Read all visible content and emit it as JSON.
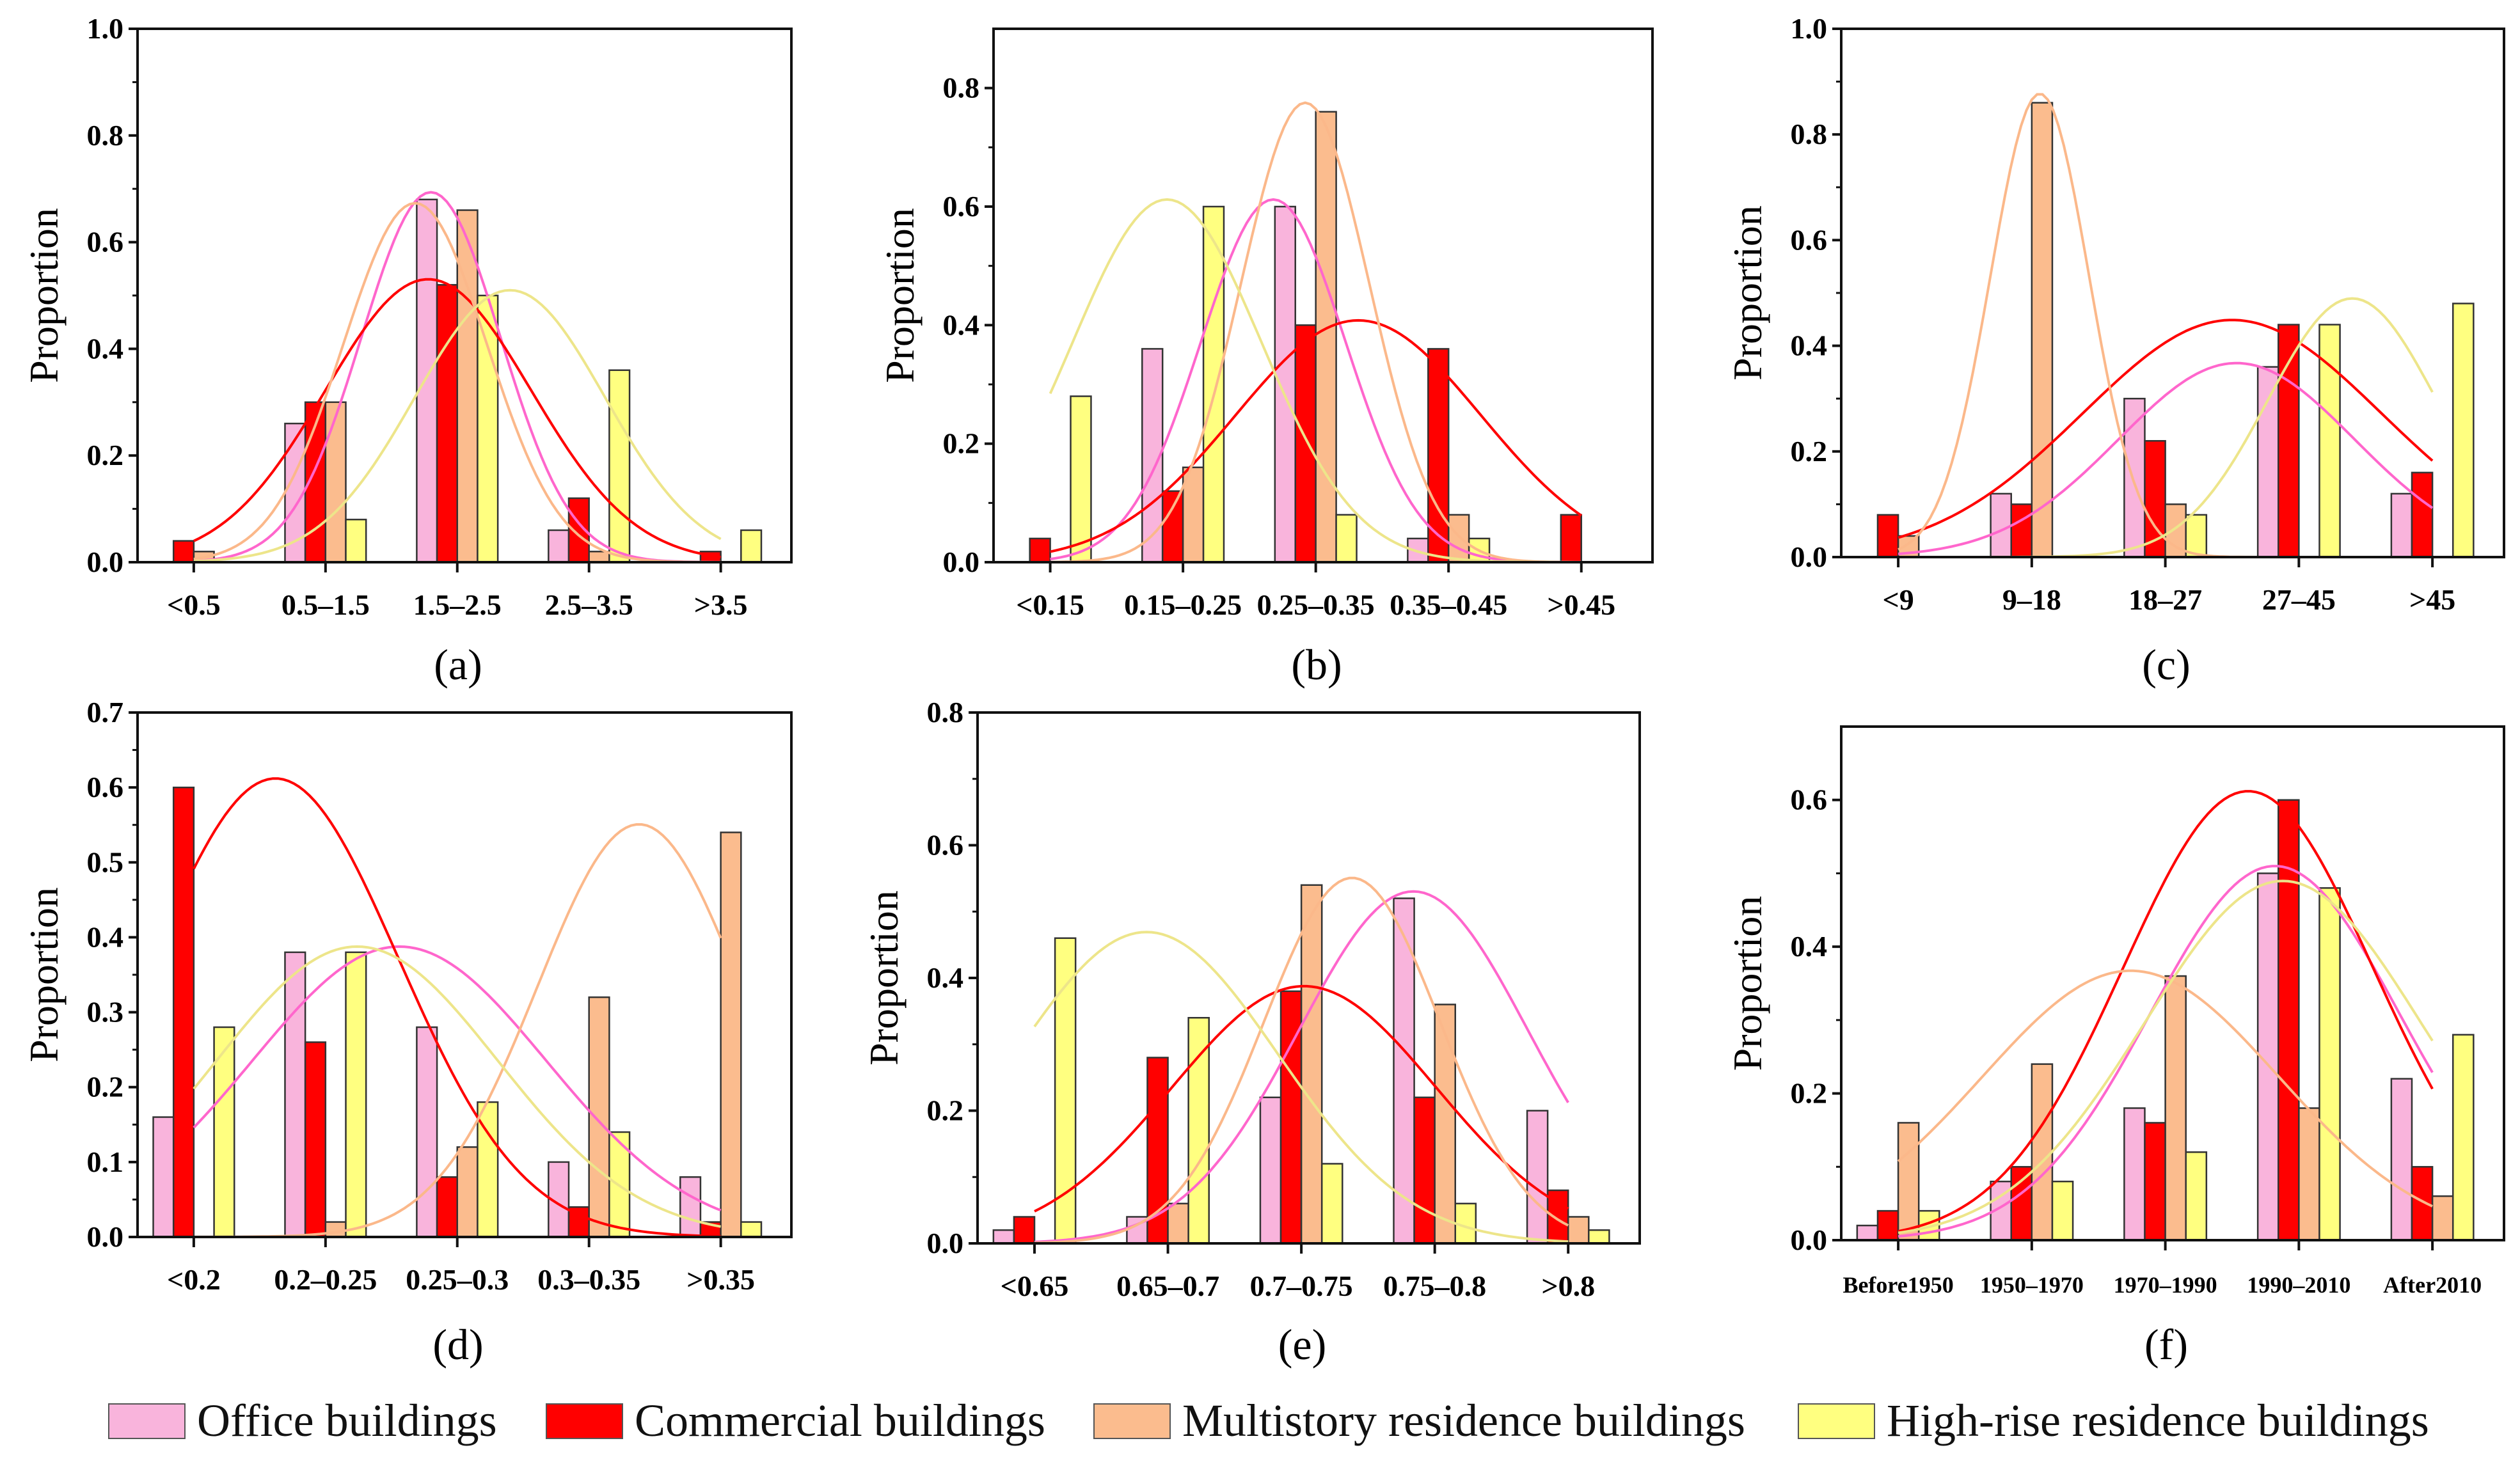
{
  "series_colors": {
    "office": "#F9B4DC",
    "commercial": "#FF0000",
    "multistory": "#FBBC8E",
    "highrise": "#FFFF80"
  },
  "curve_colors": {
    "office": "#FF66CC",
    "commercial": "#FF0000",
    "multistory": "#FBB88A",
    "highrise": "#EDE58A"
  },
  "legend": [
    {
      "key": "office",
      "label": "Office buildings"
    },
    {
      "key": "commercial",
      "label": "Commercial buildings"
    },
    {
      "key": "multistory",
      "label": "Multistory residence buildings"
    },
    {
      "key": "highrise",
      "label": "High-rise residence buildings"
    }
  ],
  "chart_data": [
    {
      "type": "bar",
      "panel": "(a)",
      "ylabel": "Proportion",
      "ylim": [
        0,
        1.0
      ],
      "yticks": [
        "0.0",
        "0.2",
        "0.4",
        "0.6",
        "0.8",
        "1.0"
      ],
      "ytick_values": [
        0,
        0.2,
        0.4,
        0.6,
        0.8,
        1.0
      ],
      "categories": [
        "<0.5",
        "0.5–1.5",
        "1.5–2.5",
        "2.5–3.5",
        ">3.5"
      ],
      "series": [
        {
          "name": "Office buildings",
          "key": "office",
          "values": [
            0,
            0.26,
            0.68,
            0.06,
            0
          ]
        },
        {
          "name": "Commercial buildings",
          "key": "commercial",
          "values": [
            0.04,
            0.3,
            0.52,
            0.12,
            0.02
          ]
        },
        {
          "name": "Multistory residence buildings",
          "key": "multistory",
          "values": [
            0.02,
            0.3,
            0.66,
            0.02,
            0
          ]
        },
        {
          "name": "High-rise residence buildings",
          "key": "highrise",
          "values": [
            0,
            0.08,
            0.5,
            0.36,
            0.06
          ]
        }
      ]
    },
    {
      "type": "bar",
      "panel": "(b)",
      "ylabel": "Proportion",
      "ylim": [
        0,
        0.9
      ],
      "yticks": [
        "0.0",
        "0.2",
        "0.4",
        "0.6",
        "0.8"
      ],
      "ytick_values": [
        0,
        0.2,
        0.4,
        0.6,
        0.8
      ],
      "categories": [
        "<0.15",
        "0.15–0.25",
        "0.25–0.35",
        "0.35–0.45",
        ">0.45"
      ],
      "series": [
        {
          "name": "Office buildings",
          "key": "office",
          "values": [
            0,
            0.36,
            0.6,
            0.04,
            0
          ]
        },
        {
          "name": "Commercial buildings",
          "key": "commercial",
          "values": [
            0.04,
            0.12,
            0.4,
            0.36,
            0.08
          ]
        },
        {
          "name": "Multistory residence buildings",
          "key": "multistory",
          "values": [
            0,
            0.16,
            0.76,
            0.08,
            0
          ]
        },
        {
          "name": "High-rise residence buildings",
          "key": "highrise",
          "values": [
            0.28,
            0.6,
            0.08,
            0.04,
            0
          ]
        }
      ]
    },
    {
      "type": "bar",
      "panel": "(c)",
      "ylabel": "Proportion",
      "ylim": [
        0,
        1.0
      ],
      "yticks": [
        "0.0",
        "0.2",
        "0.4",
        "0.6",
        "0.8",
        "1.0"
      ],
      "ytick_values": [
        0,
        0.2,
        0.4,
        0.6,
        0.8,
        1.0
      ],
      "categories": [
        "<9",
        "9–18",
        "18–27",
        "27–45",
        ">45"
      ],
      "series": [
        {
          "name": "Office buildings",
          "key": "office",
          "values": [
            0,
            0.12,
            0.3,
            0.36,
            0.12
          ]
        },
        {
          "name": "Commercial buildings",
          "key": "commercial",
          "values": [
            0.08,
            0.1,
            0.22,
            0.44,
            0.16
          ]
        },
        {
          "name": "Multistory residence buildings",
          "key": "multistory",
          "values": [
            0.04,
            0.86,
            0.1,
            0,
            0
          ]
        },
        {
          "name": "High-rise residence buildings",
          "key": "highrise",
          "values": [
            0,
            0,
            0.08,
            0.44,
            0.48
          ]
        }
      ]
    },
    {
      "type": "bar",
      "panel": "(d)",
      "ylabel": "Proportion",
      "ylim": [
        0,
        0.7
      ],
      "yticks": [
        "0.0",
        "0.1",
        "0.2",
        "0.3",
        "0.4",
        "0.5",
        "0.6",
        "0.7"
      ],
      "ytick_values": [
        0,
        0.1,
        0.2,
        0.3,
        0.4,
        0.5,
        0.6,
        0.7
      ],
      "categories": [
        "<0.2",
        "0.2–0.25",
        "0.25–0.3",
        "0.3–0.35",
        ">0.35"
      ],
      "series": [
        {
          "name": "Office buildings",
          "key": "office",
          "values": [
            0.16,
            0.38,
            0.28,
            0.1,
            0.08
          ]
        },
        {
          "name": "Commercial buildings",
          "key": "commercial",
          "values": [
            0.6,
            0.26,
            0.08,
            0.04,
            0.02
          ]
        },
        {
          "name": "Multistory residence buildings",
          "key": "multistory",
          "values": [
            0,
            0.02,
            0.12,
            0.32,
            0.54
          ]
        },
        {
          "name": "High-rise residence buildings",
          "key": "highrise",
          "values": [
            0.28,
            0.38,
            0.18,
            0.14,
            0.02
          ]
        }
      ]
    },
    {
      "type": "bar",
      "panel": "(e)",
      "ylabel": "Proportion",
      "ylim": [
        0,
        0.8
      ],
      "yticks": [
        "0.0",
        "0.2",
        "0.4",
        "0.6",
        "0.8"
      ],
      "ytick_values": [
        0,
        0.2,
        0.4,
        0.6,
        0.8
      ],
      "categories": [
        "<0.65",
        "0.65–0.7",
        "0.7–0.75",
        "0.75–0.8",
        ">0.8"
      ],
      "series": [
        {
          "name": "Office buildings",
          "key": "office",
          "values": [
            0.02,
            0.04,
            0.22,
            0.52,
            0.2
          ]
        },
        {
          "name": "Commercial buildings",
          "key": "commercial",
          "values": [
            0.04,
            0.28,
            0.38,
            0.22,
            0.08
          ]
        },
        {
          "name": "Multistory residence buildings",
          "key": "multistory",
          "values": [
            0,
            0.06,
            0.54,
            0.36,
            0.04
          ]
        },
        {
          "name": "High-rise residence buildings",
          "key": "highrise",
          "values": [
            0.46,
            0.34,
            0.12,
            0.06,
            0.02
          ]
        }
      ]
    },
    {
      "type": "bar",
      "panel": "(f)",
      "ylabel": "Proportion",
      "ylim": [
        0,
        0.7
      ],
      "yticks": [
        "0.0",
        "0.2",
        "0.4",
        "0.6"
      ],
      "ytick_values": [
        0,
        0.2,
        0.4,
        0.6
      ],
      "categories": [
        "Before1950",
        "1950–1970",
        "1970–1990",
        "1990–2010",
        "After2010"
      ],
      "series": [
        {
          "name": "Office buildings",
          "key": "office",
          "values": [
            0.02,
            0.08,
            0.18,
            0.5,
            0.22
          ]
        },
        {
          "name": "Commercial buildings",
          "key": "commercial",
          "values": [
            0.04,
            0.1,
            0.16,
            0.6,
            0.1
          ]
        },
        {
          "name": "Multistory residence buildings",
          "key": "multistory",
          "values": [
            0.16,
            0.24,
            0.36,
            0.18,
            0.06
          ]
        },
        {
          "name": "High-rise residence buildings",
          "key": "highrise",
          "values": [
            0.04,
            0.08,
            0.12,
            0.48,
            0.28
          ]
        }
      ]
    }
  ]
}
